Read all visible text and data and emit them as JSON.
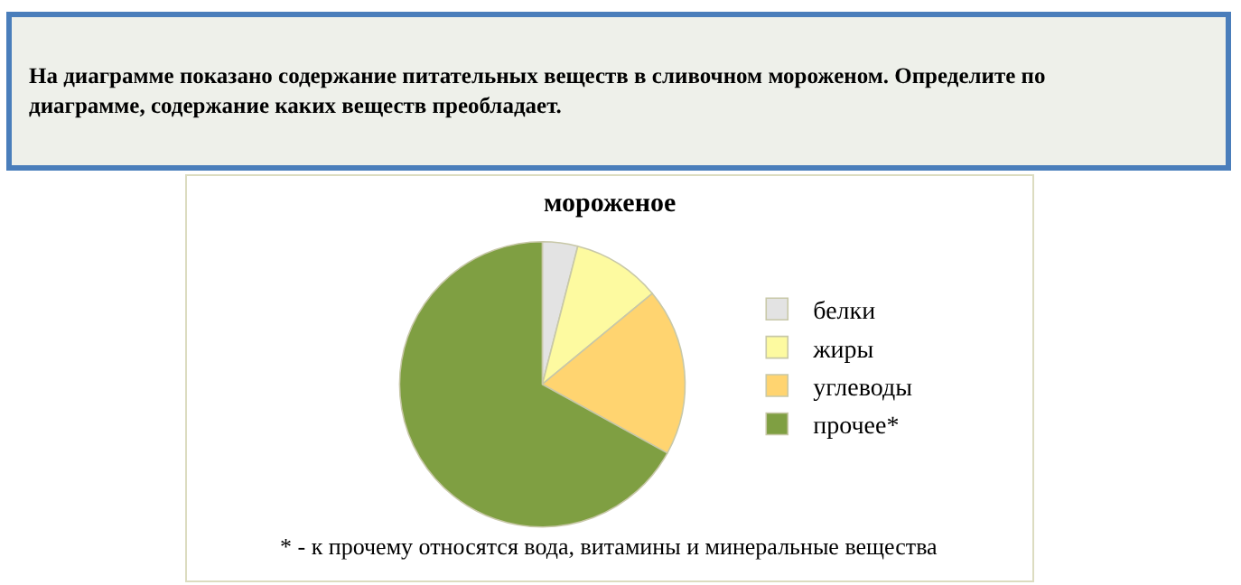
{
  "chart_data": {
    "type": "pie",
    "title": "мороженое",
    "categories": [
      "белки",
      "жиры",
      "углеводы",
      "прочее*"
    ],
    "values": [
      4,
      10,
      19,
      67
    ],
    "colors": [
      "#e3e3e3",
      "#fdfaa0",
      "#ffd470",
      "#7f9f42"
    ],
    "legend": "right",
    "annotations": [
      "На диаграмме показано содержание питательных веществ в сливочном мороженом. Определите по диаграмме, содержание каких веществ преобладает.",
      "* - к прочему относятся вода, витамины и минеральные вещества"
    ]
  }
}
